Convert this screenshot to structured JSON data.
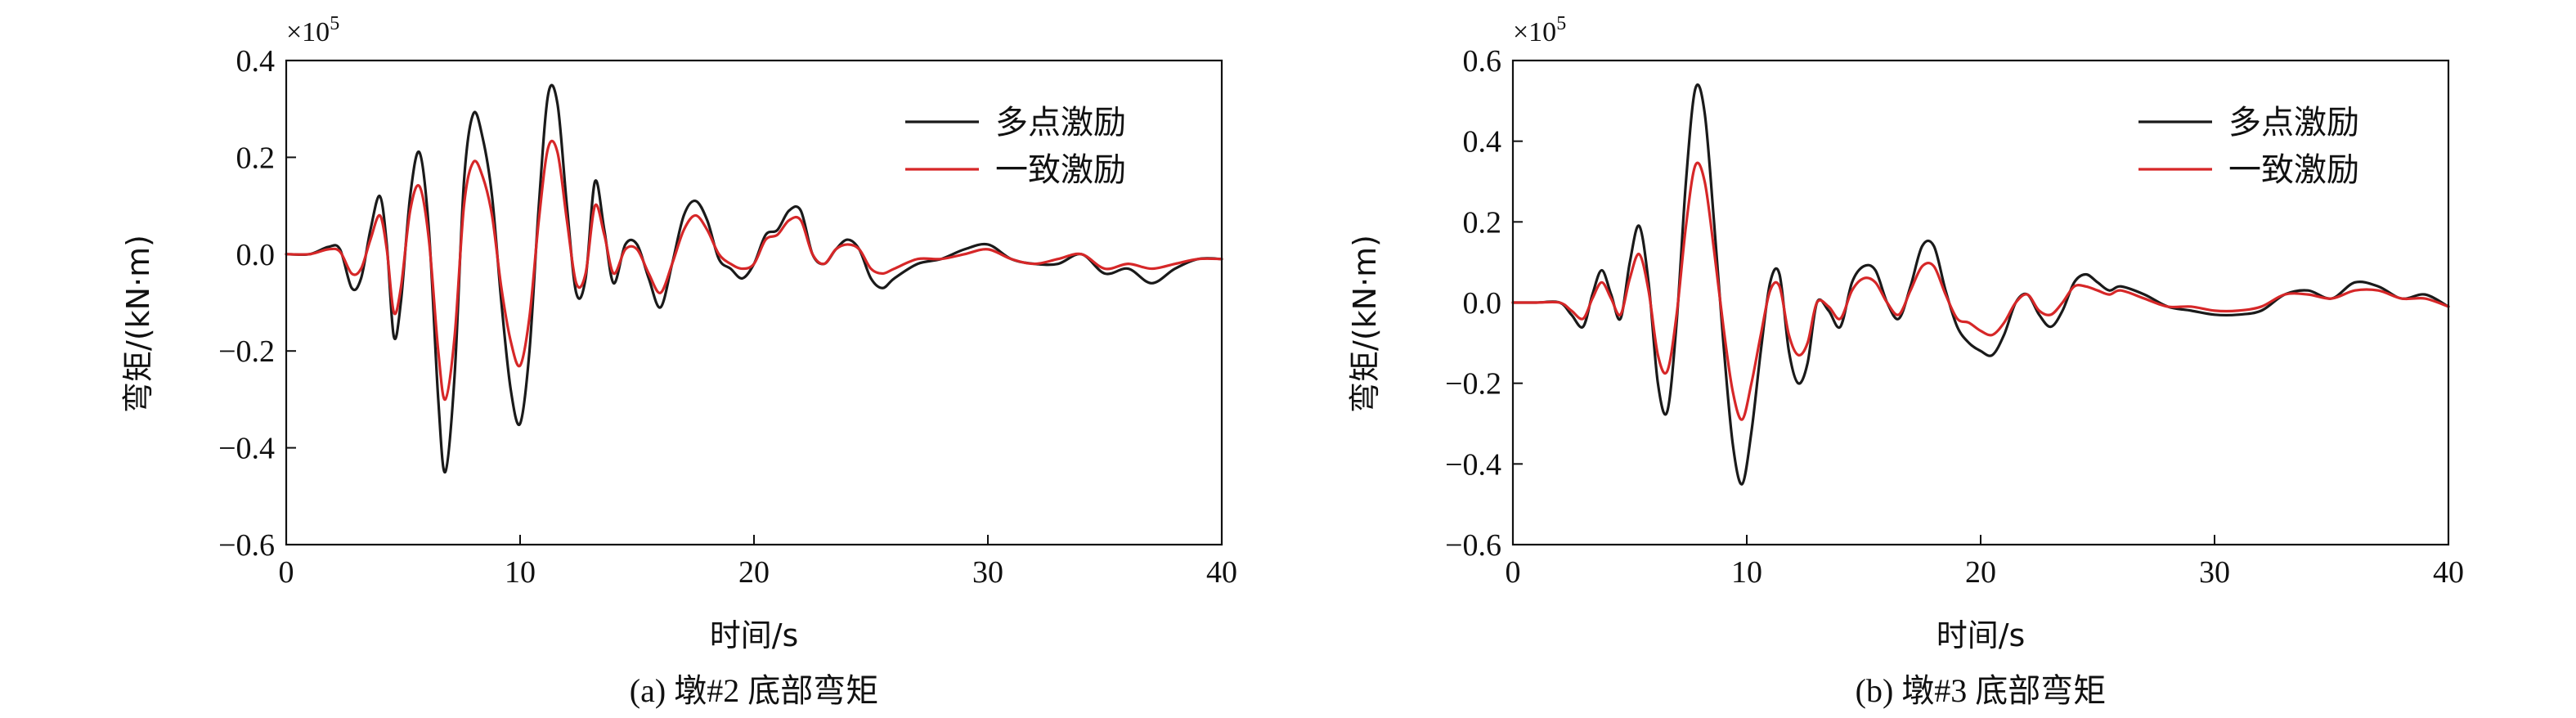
{
  "chart_data": [
    {
      "type": "line",
      "caption": "(a) 墩#2 底部弯矩",
      "xlabel": "时间/s",
      "ylabel": "弯矩/(kN·m)",
      "multiplier": "×10",
      "multiplier_exp": "5",
      "xlim": [
        0,
        40
      ],
      "ylim": [
        -0.6,
        0.4
      ],
      "xticks": [
        "0",
        "10",
        "20",
        "30",
        "40"
      ],
      "yticks": [
        "0.4",
        "0.2",
        "0.0",
        "−0.2",
        "−0.4",
        "−0.6"
      ],
      "ytick_values": [
        0.4,
        0.2,
        0.0,
        -0.2,
        -0.4,
        -0.6
      ],
      "xtick_values": [
        0,
        10,
        20,
        30,
        40
      ],
      "legend_position": "top-right",
      "series": [
        {
          "name": "多点激励",
          "color": "#1a1a1a",
          "x": [
            0,
            1,
            1.8,
            2.3,
            2.8,
            3.2,
            3.6,
            4.0,
            4.3,
            4.6,
            4.9,
            5.3,
            5.7,
            6.1,
            6.5,
            6.8,
            7.2,
            7.6,
            8.0,
            8.4,
            8.8,
            9.2,
            9.6,
            10.0,
            10.4,
            10.8,
            11.2,
            11.6,
            12.0,
            12.4,
            12.8,
            13.2,
            13.6,
            14.0,
            14.5,
            15.0,
            15.5,
            16.0,
            16.5,
            17.0,
            17.5,
            18.0,
            18.5,
            19.0,
            19.5,
            20.0,
            20.5,
            21.0,
            21.5,
            22.0,
            22.5,
            23.0,
            23.5,
            24.0,
            24.5,
            25.0,
            25.5,
            26.0,
            27.0,
            28.0,
            29.0,
            30.0,
            31.0,
            32.0,
            33.0,
            34.0,
            35.0,
            36.0,
            37.0,
            38.0,
            39.0,
            40.0
          ],
          "y": [
            0.0,
            0.0,
            0.015,
            0.01,
            -0.07,
            -0.05,
            0.05,
            0.12,
            0.02,
            -0.17,
            -0.1,
            0.12,
            0.21,
            0.05,
            -0.3,
            -0.45,
            -0.25,
            0.15,
            0.29,
            0.24,
            0.12,
            -0.1,
            -0.28,
            -0.35,
            -0.2,
            0.1,
            0.33,
            0.31,
            0.1,
            -0.08,
            -0.05,
            0.15,
            0.05,
            -0.06,
            0.02,
            0.02,
            -0.05,
            -0.11,
            -0.02,
            0.08,
            0.11,
            0.07,
            -0.01,
            -0.03,
            -0.05,
            -0.02,
            0.04,
            0.05,
            0.09,
            0.09,
            0.0,
            -0.02,
            0.01,
            0.03,
            0.01,
            -0.05,
            -0.07,
            -0.05,
            -0.02,
            -0.01,
            0.01,
            0.02,
            -0.01,
            -0.02,
            -0.02,
            0.0,
            -0.04,
            -0.03,
            -0.06,
            -0.03,
            -0.01,
            -0.01
          ]
        },
        {
          "name": "一致激励",
          "color": "#d62728",
          "x": [
            0,
            1,
            1.8,
            2.3,
            2.8,
            3.2,
            3.6,
            4.0,
            4.3,
            4.6,
            4.9,
            5.3,
            5.7,
            6.1,
            6.5,
            6.8,
            7.2,
            7.6,
            8.0,
            8.4,
            8.8,
            9.2,
            9.6,
            10.0,
            10.4,
            10.8,
            11.2,
            11.6,
            12.0,
            12.4,
            12.8,
            13.2,
            13.6,
            14.0,
            14.5,
            15.0,
            15.5,
            16.0,
            16.5,
            17.0,
            17.5,
            18.0,
            18.5,
            19.0,
            19.5,
            20.0,
            20.5,
            21.0,
            21.5,
            22.0,
            22.5,
            23.0,
            23.5,
            24.0,
            24.5,
            25.0,
            25.5,
            26.0,
            27.0,
            28.0,
            29.0,
            30.0,
            31.0,
            32.0,
            33.0,
            34.0,
            35.0,
            36.0,
            37.0,
            38.0,
            39.0,
            40.0
          ],
          "y": [
            0.0,
            0.0,
            0.01,
            0.005,
            -0.04,
            -0.03,
            0.03,
            0.08,
            0.01,
            -0.12,
            -0.07,
            0.09,
            0.14,
            0.03,
            -0.2,
            -0.3,
            -0.17,
            0.1,
            0.19,
            0.16,
            0.08,
            -0.07,
            -0.18,
            -0.23,
            -0.13,
            0.07,
            0.22,
            0.21,
            0.07,
            -0.06,
            -0.04,
            0.1,
            0.04,
            -0.04,
            0.01,
            0.01,
            -0.04,
            -0.08,
            -0.02,
            0.05,
            0.08,
            0.05,
            0.0,
            -0.02,
            -0.03,
            -0.02,
            0.03,
            0.04,
            0.07,
            0.07,
            0.0,
            -0.02,
            0.01,
            0.02,
            0.01,
            -0.03,
            -0.04,
            -0.03,
            -0.01,
            -0.01,
            0.0,
            0.01,
            -0.01,
            -0.02,
            -0.01,
            0.0,
            -0.03,
            -0.02,
            -0.03,
            -0.02,
            -0.01,
            -0.01
          ]
        }
      ]
    },
    {
      "type": "line",
      "caption": "(b) 墩#3 底部弯矩",
      "xlabel": "时间/s",
      "ylabel": "弯矩/(kN·m)",
      "multiplier": "×10",
      "multiplier_exp": "5",
      "xlim": [
        0,
        40
      ],
      "ylim": [
        -0.6,
        0.6
      ],
      "xticks": [
        "0",
        "10",
        "20",
        "30",
        "40"
      ],
      "yticks": [
        "0.6",
        "0.4",
        "0.2",
        "0.0",
        "−0.2",
        "−0.4",
        "−0.6"
      ],
      "ytick_values": [
        0.6,
        0.4,
        0.2,
        0.0,
        -0.2,
        -0.4,
        -0.6
      ],
      "xtick_values": [
        0,
        10,
        20,
        30,
        40
      ],
      "legend_position": "top-right",
      "series": [
        {
          "name": "多点激励",
          "color": "#1a1a1a",
          "x": [
            0,
            1,
            2.0,
            2.5,
            3.0,
            3.4,
            3.8,
            4.2,
            4.6,
            5.0,
            5.4,
            5.8,
            6.2,
            6.6,
            7.0,
            7.4,
            7.8,
            8.2,
            8.6,
            9.0,
            9.4,
            9.8,
            10.2,
            10.6,
            11.0,
            11.4,
            11.8,
            12.2,
            12.6,
            13.0,
            13.5,
            14.0,
            14.5,
            15.0,
            15.5,
            16.0,
            16.5,
            17.0,
            17.5,
            18.0,
            18.5,
            19.0,
            19.5,
            20.0,
            20.5,
            21.0,
            21.5,
            22.0,
            22.5,
            23.0,
            23.5,
            24.0,
            24.5,
            25.0,
            25.5,
            26.0,
            27.0,
            28.0,
            29.0,
            30.0,
            31.0,
            32.0,
            33.0,
            34.0,
            35.0,
            36.0,
            37.0,
            38.0,
            39.0,
            40.0
          ],
          "y": [
            0.0,
            0.0,
            0.0,
            -0.03,
            -0.06,
            0.02,
            0.08,
            0.02,
            -0.04,
            0.1,
            0.19,
            0.05,
            -0.2,
            -0.27,
            -0.05,
            0.3,
            0.53,
            0.47,
            0.2,
            -0.1,
            -0.35,
            -0.45,
            -0.32,
            -0.12,
            0.05,
            0.07,
            -0.12,
            -0.2,
            -0.15,
            0.0,
            -0.02,
            -0.06,
            0.05,
            0.09,
            0.08,
            0.0,
            -0.04,
            0.04,
            0.14,
            0.14,
            0.03,
            -0.06,
            -0.1,
            -0.12,
            -0.13,
            -0.08,
            0.0,
            0.02,
            -0.03,
            -0.06,
            -0.02,
            0.05,
            0.07,
            0.05,
            0.03,
            0.04,
            0.02,
            -0.01,
            -0.02,
            -0.03,
            -0.03,
            -0.02,
            0.02,
            0.03,
            0.01,
            0.05,
            0.04,
            0.01,
            0.02,
            -0.01
          ]
        },
        {
          "name": "一致激励",
          "color": "#d62728",
          "x": [
            0,
            1,
            2.0,
            2.5,
            3.0,
            3.4,
            3.8,
            4.2,
            4.6,
            5.0,
            5.4,
            5.8,
            6.2,
            6.6,
            7.0,
            7.4,
            7.8,
            8.2,
            8.6,
            9.0,
            9.4,
            9.8,
            10.2,
            10.6,
            11.0,
            11.4,
            11.8,
            12.2,
            12.6,
            13.0,
            13.5,
            14.0,
            14.5,
            15.0,
            15.5,
            16.0,
            16.5,
            17.0,
            17.5,
            18.0,
            18.5,
            19.0,
            19.5,
            20.0,
            20.5,
            21.0,
            21.5,
            22.0,
            22.5,
            23.0,
            23.5,
            24.0,
            24.5,
            25.0,
            25.5,
            26.0,
            27.0,
            28.0,
            29.0,
            30.0,
            31.0,
            32.0,
            33.0,
            34.0,
            35.0,
            36.0,
            37.0,
            38.0,
            39.0,
            40.0
          ],
          "y": [
            0.0,
            0.0,
            0.0,
            -0.02,
            -0.04,
            0.01,
            0.05,
            0.01,
            -0.03,
            0.06,
            0.12,
            0.03,
            -0.13,
            -0.17,
            -0.03,
            0.19,
            0.34,
            0.3,
            0.13,
            -0.06,
            -0.22,
            -0.29,
            -0.2,
            -0.08,
            0.03,
            0.04,
            -0.08,
            -0.13,
            -0.1,
            0.0,
            -0.01,
            -0.04,
            0.03,
            0.06,
            0.05,
            0.0,
            -0.03,
            0.03,
            0.09,
            0.09,
            0.02,
            -0.04,
            -0.05,
            -0.07,
            -0.08,
            -0.05,
            0.0,
            0.02,
            -0.02,
            -0.03,
            0.0,
            0.04,
            0.04,
            0.03,
            0.02,
            0.03,
            0.01,
            -0.01,
            -0.01,
            -0.02,
            -0.02,
            -0.01,
            0.02,
            0.02,
            0.01,
            0.03,
            0.03,
            0.01,
            0.01,
            -0.01
          ]
        }
      ]
    }
  ]
}
